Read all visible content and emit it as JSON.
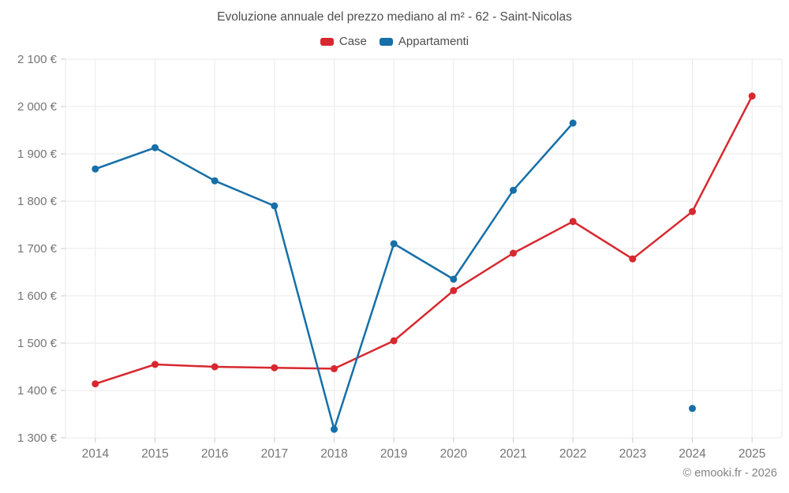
{
  "footer": "© emooki.fr - 2026",
  "chart_data": {
    "type": "line",
    "title": "Evoluzione annuale del prezzo mediano al m² - 62 - Saint-Nicolas",
    "xlabel": "",
    "ylabel": "",
    "categories": [
      "2014",
      "2015",
      "2016",
      "2017",
      "2018",
      "2019",
      "2020",
      "2021",
      "2022",
      "2023",
      "2024",
      "2025"
    ],
    "series": [
      {
        "name": "Case",
        "color": "#d7282f",
        "values": [
          1414,
          1455,
          1450,
          1448,
          1446,
          1505,
          1611,
          1690,
          1757,
          1678,
          1778,
          2022
        ]
      },
      {
        "name": "Appartamenti",
        "color": "#166fa8",
        "values": [
          1868,
          1913,
          1843,
          1790,
          1318,
          1710,
          1635,
          1823,
          1965,
          null,
          1362,
          null
        ]
      }
    ],
    "ylim": [
      1300,
      2100
    ],
    "ytick_step": 100,
    "ytick_labels": [
      "1 300 €",
      "1 400 €",
      "1 500 €",
      "1 600 €",
      "1 700 €",
      "1 800 €",
      "1 900 €",
      "2 000 €",
      "2 100 €"
    ],
    "grid": true,
    "legend_position": "top",
    "grid_color": "#e9e9e9",
    "tick_color": "#c9c9c9",
    "axis_text_color": "#757575"
  }
}
